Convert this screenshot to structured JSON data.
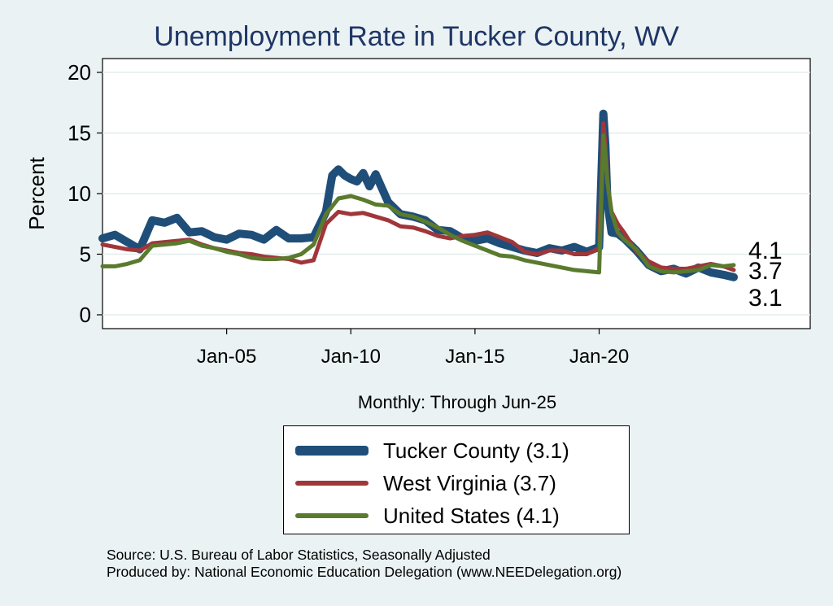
{
  "chart_data": {
    "type": "line",
    "title": "Unemployment Rate in Tucker  County, WV",
    "ylabel": "Percent",
    "xlabel": "Monthly: Through Jun-25",
    "ylim": [
      0,
      20
    ],
    "xlim": [
      2000.0,
      2028.5
    ],
    "yticks": [
      0,
      5,
      10,
      15,
      20
    ],
    "xticks": [
      {
        "label": "Jan-05",
        "x": 2005.0
      },
      {
        "label": "Jan-10",
        "x": 2010.0
      },
      {
        "label": "Jan-15",
        "x": 2015.0
      },
      {
        "label": "Jan-20",
        "x": 2020.0
      }
    ],
    "grid": true,
    "legend_position": "bottom",
    "series": [
      {
        "name": "Tucker  County",
        "legend_label": "Tucker  County (3.1)",
        "end_label": "3.1",
        "color": "#1f4e79",
        "x": [
          2000.0,
          2000.5,
          2001.0,
          2001.5,
          2002.0,
          2002.5,
          2003.0,
          2003.5,
          2004.0,
          2004.5,
          2005.0,
          2005.5,
          2006.0,
          2006.5,
          2007.0,
          2007.5,
          2008.0,
          2008.5,
          2009.0,
          2009.25,
          2009.5,
          2009.75,
          2010.0,
          2010.25,
          2010.5,
          2010.75,
          2011.0,
          2011.5,
          2012.0,
          2012.5,
          2013.0,
          2013.5,
          2014.0,
          2014.5,
          2015.0,
          2015.5,
          2016.0,
          2016.5,
          2017.0,
          2017.5,
          2018.0,
          2018.5,
          2019.0,
          2019.5,
          2020.0,
          2020.17,
          2020.25,
          2020.33,
          2020.42,
          2020.5,
          2020.75,
          2021.0,
          2021.5,
          2022.0,
          2022.5,
          2023.0,
          2023.5,
          2024.0,
          2024.5,
          2025.0,
          2025.42
        ],
        "y": [
          6.3,
          6.6,
          6.0,
          5.4,
          7.8,
          7.6,
          8.0,
          6.8,
          6.9,
          6.4,
          6.2,
          6.7,
          6.6,
          6.2,
          7.0,
          6.3,
          6.3,
          6.4,
          8.5,
          11.5,
          12.0,
          11.5,
          11.2,
          11.0,
          11.7,
          10.6,
          11.6,
          9.3,
          8.3,
          8.1,
          7.8,
          7.0,
          6.9,
          6.3,
          6.1,
          6.3,
          5.9,
          5.6,
          5.3,
          5.1,
          5.5,
          5.3,
          5.6,
          5.2,
          5.6,
          16.6,
          14.0,
          9.5,
          8.0,
          6.8,
          6.7,
          6.3,
          5.3,
          4.1,
          3.6,
          3.8,
          3.4,
          3.9,
          3.5,
          3.3,
          3.1
        ]
      },
      {
        "name": "West Virginia",
        "legend_label": "West Virginia (3.7)",
        "end_label": "3.7",
        "color": "#a0363a",
        "x": [
          2000.0,
          2000.5,
          2001.0,
          2001.5,
          2002.0,
          2002.5,
          2003.0,
          2003.5,
          2004.0,
          2004.5,
          2005.0,
          2005.5,
          2006.0,
          2006.5,
          2007.0,
          2007.5,
          2008.0,
          2008.5,
          2009.0,
          2009.5,
          2010.0,
          2010.5,
          2011.0,
          2011.5,
          2012.0,
          2012.5,
          2013.0,
          2013.5,
          2014.0,
          2014.5,
          2015.0,
          2015.5,
          2016.0,
          2016.5,
          2017.0,
          2017.5,
          2018.0,
          2018.5,
          2019.0,
          2019.5,
          2020.0,
          2020.17,
          2020.25,
          2020.33,
          2020.5,
          2020.75,
          2021.0,
          2021.5,
          2022.0,
          2022.5,
          2023.0,
          2023.5,
          2024.0,
          2024.5,
          2025.0,
          2025.42
        ],
        "y": [
          5.8,
          5.6,
          5.4,
          5.3,
          5.9,
          6.0,
          6.1,
          6.2,
          5.8,
          5.5,
          5.3,
          5.1,
          5.0,
          4.8,
          4.7,
          4.6,
          4.3,
          4.5,
          7.5,
          8.5,
          8.3,
          8.4,
          8.1,
          7.8,
          7.3,
          7.2,
          6.9,
          6.5,
          6.3,
          6.5,
          6.6,
          6.8,
          6.4,
          6.0,
          5.2,
          5.0,
          5.3,
          5.3,
          5.0,
          5.0,
          5.5,
          15.8,
          14.0,
          11.0,
          8.5,
          7.5,
          6.8,
          5.2,
          4.4,
          3.9,
          3.8,
          3.8,
          4.0,
          4.2,
          4.0,
          3.7
        ]
      },
      {
        "name": "United States",
        "legend_label": "United States (4.1)",
        "end_label": "4.1",
        "color": "#5a7a2e",
        "x": [
          2000.0,
          2000.5,
          2001.0,
          2001.5,
          2002.0,
          2002.5,
          2003.0,
          2003.5,
          2004.0,
          2004.5,
          2005.0,
          2005.5,
          2006.0,
          2006.5,
          2007.0,
          2007.5,
          2008.0,
          2008.5,
          2009.0,
          2009.5,
          2010.0,
          2010.5,
          2011.0,
          2011.5,
          2012.0,
          2012.5,
          2013.0,
          2013.5,
          2014.0,
          2014.5,
          2015.0,
          2015.5,
          2016.0,
          2016.5,
          2017.0,
          2017.5,
          2018.0,
          2018.5,
          2019.0,
          2019.5,
          2020.0,
          2020.17,
          2020.25,
          2020.33,
          2020.5,
          2020.75,
          2021.0,
          2021.5,
          2022.0,
          2022.5,
          2023.0,
          2023.5,
          2024.0,
          2024.5,
          2025.0,
          2025.42
        ],
        "y": [
          4.0,
          4.0,
          4.2,
          4.5,
          5.7,
          5.8,
          5.9,
          6.1,
          5.7,
          5.5,
          5.2,
          5.0,
          4.7,
          4.6,
          4.6,
          4.7,
          5.0,
          5.8,
          8.3,
          9.6,
          9.8,
          9.5,
          9.1,
          9.0,
          8.3,
          8.1,
          7.7,
          7.2,
          6.6,
          6.1,
          5.7,
          5.3,
          4.9,
          4.8,
          4.5,
          4.3,
          4.1,
          3.9,
          3.7,
          3.6,
          3.5,
          14.8,
          13.2,
          11.0,
          8.4,
          6.8,
          6.2,
          5.4,
          4.0,
          3.6,
          3.5,
          3.6,
          3.7,
          4.1,
          4.0,
          4.1
        ]
      }
    ]
  },
  "footer": {
    "source": "Source: U.S. Bureau of Labor Statistics, Seasonally Adjusted",
    "producer": "Produced by: National Economic Education Delegation (www.NEEDelegation.org)"
  }
}
